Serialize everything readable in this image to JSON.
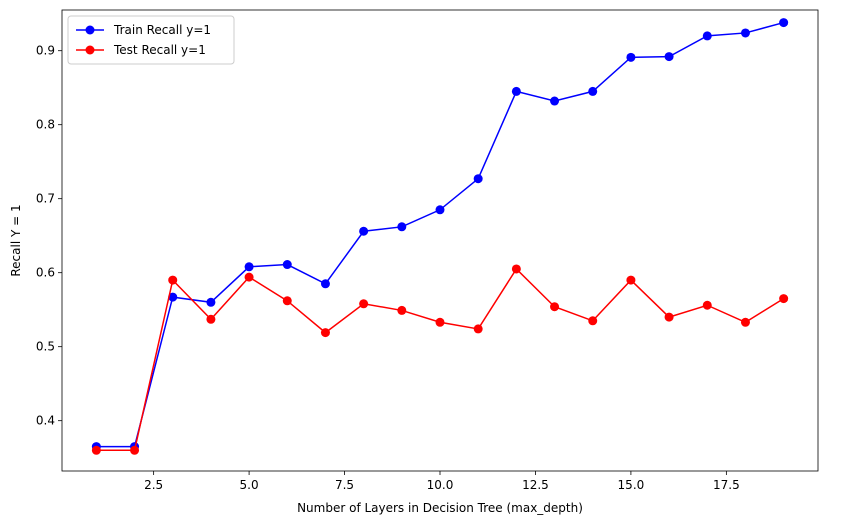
{
  "chart_data": {
    "type": "line",
    "title": "",
    "xlabel": "Number of Layers in Decision Tree (max_depth)",
    "ylabel": "Recall Y = 1",
    "xlim": [
      0.1,
      19.9
    ],
    "ylim": [
      0.332,
      0.955
    ],
    "xticks": [
      2.5,
      5.0,
      7.5,
      10.0,
      12.5,
      15.0,
      17.5
    ],
    "xtick_labels": [
      "2.5",
      "5.0",
      "7.5",
      "10.0",
      "12.5",
      "15.0",
      "17.5"
    ],
    "yticks": [
      0.4,
      0.5,
      0.6,
      0.7,
      0.8,
      0.9
    ],
    "ytick_labels": [
      "0.4",
      "0.5",
      "0.6",
      "0.7",
      "0.8",
      "0.9"
    ],
    "grid": false,
    "legend_position": "top-left",
    "x": [
      1,
      2,
      3,
      4,
      5,
      6,
      7,
      8,
      9,
      10,
      11,
      12,
      13,
      14,
      15,
      16,
      17,
      18,
      19
    ],
    "series": [
      {
        "name": "Train Recall y=1",
        "color": "#0000ff",
        "values": [
          0.365,
          0.365,
          0.567,
          0.56,
          0.608,
          0.611,
          0.585,
          0.656,
          0.662,
          0.685,
          0.727,
          0.845,
          0.832,
          0.845,
          0.891,
          0.892,
          0.92,
          0.924,
          0.938
        ]
      },
      {
        "name": "Test Recall y=1",
        "color": "#ff0000",
        "values": [
          0.36,
          0.36,
          0.59,
          0.537,
          0.594,
          0.562,
          0.519,
          0.558,
          0.549,
          0.533,
          0.524,
          0.605,
          0.554,
          0.535,
          0.59,
          0.54,
          0.556,
          0.533,
          0.565
        ]
      }
    ]
  }
}
